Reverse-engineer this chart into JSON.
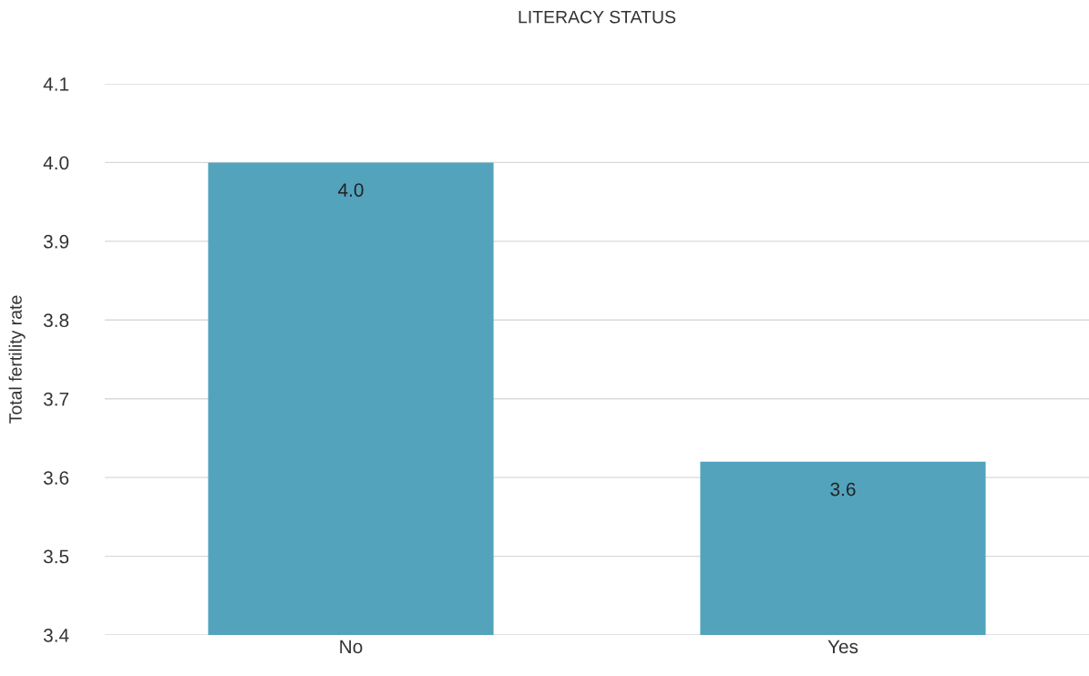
{
  "chart_data": {
    "type": "bar",
    "title": "LITERACY STATUS",
    "ylabel": "Total fertility rate",
    "categories": [
      "No",
      "Yes"
    ],
    "values": [
      4.0,
      3.62
    ],
    "value_labels": [
      "4.0",
      "3.6"
    ],
    "color": "#53a3bd",
    "ylim": [
      3.4,
      4.1
    ],
    "yticks": [
      {
        "value": 3.4,
        "label": "3.4"
      },
      {
        "value": 3.5,
        "label": "3.5"
      },
      {
        "value": 3.6,
        "label": "3.6"
      },
      {
        "value": 3.7,
        "label": "3.7"
      },
      {
        "value": 3.8,
        "label": "3.8"
      },
      {
        "value": 3.9,
        "label": "3.9"
      },
      {
        "value": 4.0,
        "label": "4.0"
      },
      {
        "value": 4.1,
        "label": "4.1"
      }
    ],
    "grid": "y"
  }
}
